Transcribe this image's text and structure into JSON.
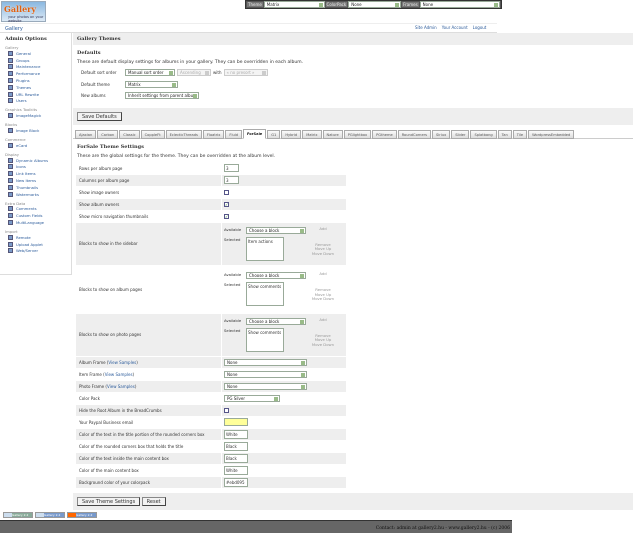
{
  "logo": {
    "text": "Gallery",
    "tag": "your photos on your website"
  },
  "topbar": {
    "theme_label": "Theme",
    "theme_value": "Matrix",
    "colorpack_label": "ColorPack",
    "colorpack_value": "None",
    "frames_label": "Frames",
    "frames_value": "None"
  },
  "breadcrumb": "Gallery",
  "toplinks": [
    "Site Admin",
    "Your Account",
    "Logout"
  ],
  "sidebar": {
    "title": "Admin Options",
    "groups": [
      {
        "label": "Gallery",
        "items": [
          "General",
          "Groups",
          "Maintenance",
          "Performance",
          "Plugins",
          "Themes",
          "URL Rewrite",
          "Users"
        ]
      },
      {
        "label": "Graphics Toolkits",
        "items": [
          "ImageMagick"
        ]
      },
      {
        "label": "Blocks",
        "items": [
          "Image Block"
        ]
      },
      {
        "label": "Commerce",
        "items": [
          "eCard"
        ]
      },
      {
        "label": "Display",
        "items": [
          "Dynamic Albums",
          "Icons",
          "Link Items",
          "New Items",
          "Thumbnails",
          "Watermarks"
        ]
      },
      {
        "label": "Extra Data",
        "items": [
          "Comments",
          "Custom Fields",
          "MultiLanguage"
        ]
      },
      {
        "label": "Import",
        "items": [
          "Remote",
          "Upload Applet",
          "Web/Server"
        ]
      }
    ],
    "current": "Themes"
  },
  "main": {
    "title": "Gallery Themes",
    "defaults_title": "Defaults",
    "defaults_desc": "These are default display settings for albums in your gallery. They can be overridden in each album.",
    "sort_label": "Default sort order",
    "sort_value": "Manual sort order",
    "sort_dir": "Ascending",
    "with_label": "with",
    "presort": "« no presort »",
    "theme_label": "Default theme",
    "theme_value": "Matrix",
    "new_label": "New albums",
    "new_value": "Inherit settings from parent album",
    "save_defaults": "Save Defaults"
  },
  "tabs": [
    "Ajaxian",
    "Carbon",
    "Classic",
    "CoppleFt",
    "EclecticThreads",
    "Floatrix",
    "Fluid",
    "ForSale",
    "G1",
    "Hybrid",
    "Matrix",
    "Nature",
    "PGlightbox",
    "PGtheme",
    "RoundCorners",
    "Siriux",
    "Slider",
    "Splatbang",
    "Tan",
    "Tile",
    "WordpressEmbedded"
  ],
  "active_tab": "ForSale",
  "theme": {
    "title": "ForSale Theme Settings",
    "desc": "These are the global settings for the theme. They can be overridden at the album level.",
    "rows_label": "Rows per album page",
    "rows": "3",
    "cols_label": "Columns per album page",
    "cols": "3",
    "img_owners_label": "Show image owners",
    "img_owners": false,
    "alb_owners_label": "Show album owners",
    "alb_owners": true,
    "micro_label": "Show micro navigation thumbnails",
    "micro": true,
    "blocks": [
      {
        "label": "Blocks to show in the sidebar",
        "selected": "Item actions"
      },
      {
        "label": "Blocks to show on album pages",
        "selected": "Show comments"
      },
      {
        "label": "Blocks to show on photo pages",
        "selected": "Show comments"
      }
    ],
    "available": "Available",
    "selected_label": "Selected",
    "choose": "Choose a block",
    "add": "Add",
    "remove": "Remove",
    "up": "Move Up",
    "down": "Move Down",
    "view_samples": "View Samples",
    "album_frame_label": "Album Frame",
    "album_frame": "None",
    "item_frame_label": "Item Frame",
    "item_frame": "None",
    "photo_frame_label": "Photo Frame",
    "photo_frame": "None",
    "colorpack_label": "Color Pack",
    "colorpack": "PG Silver",
    "hide_root_label": "Hide the Root Album in the BreadCrumbs",
    "hide_root": false,
    "paypal_label": "Your Paypal Business email",
    "paypal": "",
    "c1_label": "Color of the text in the title portion of the rounded corners box",
    "c1": "White",
    "c2_label": "Color of the rounded corners box that holds the title",
    "c2": "Black",
    "c3_label": "Color of the text inside the main content box",
    "c3": "Black",
    "c4_label": "Color of the main content box",
    "c4": "White",
    "c5_label": "Background color of your colorpack",
    "c5": "#ebd095",
    "save": "Save Theme Settings",
    "reset": "Reset"
  },
  "footer": {
    "badges": [
      "Gallery 2.2",
      "Gallery 2.2",
      "Gallery 2.2"
    ],
    "contact": "Contact: admin at gallery2.hu - www.gallery2.hu - (c) 2006"
  }
}
